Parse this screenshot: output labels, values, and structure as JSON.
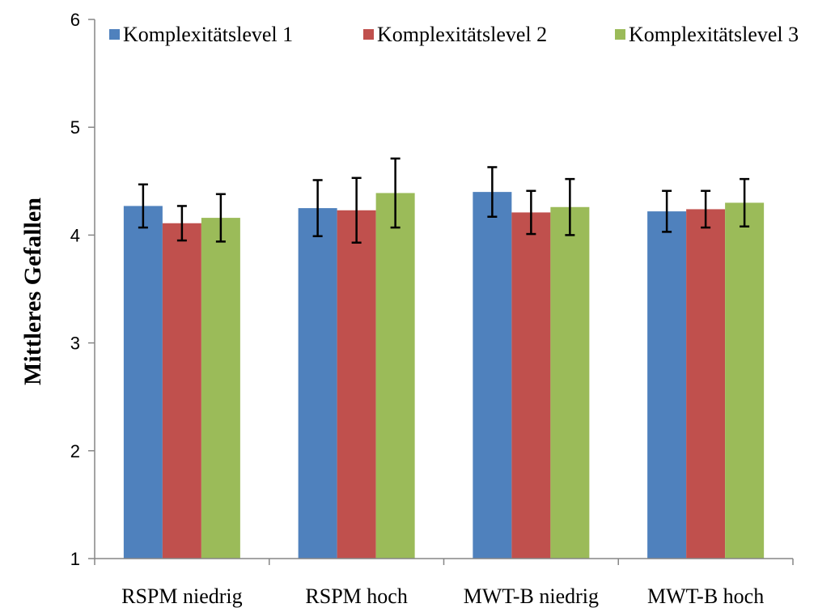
{
  "chart_data": {
    "type": "bar",
    "title": "",
    "xlabel": "",
    "ylabel": "Mittleres  Gefallen",
    "ylim": [
      1,
      6
    ],
    "yticks": [
      1,
      2,
      3,
      4,
      5,
      6
    ],
    "grid": false,
    "legend_position": "top",
    "categories": [
      "RSPM niedrig",
      "RSPM hoch",
      "MWT-B niedrig",
      "MWT-B hoch"
    ],
    "series": [
      {
        "name": "Komplexitätslevel 1",
        "color": "#4f81bd",
        "values": [
          4.27,
          4.25,
          4.4,
          4.22
        ],
        "error": [
          0.2,
          0.26,
          0.23,
          0.19
        ]
      },
      {
        "name": "Komplexitätslevel 2",
        "color": "#c0504d",
        "values": [
          4.11,
          4.23,
          4.21,
          4.24
        ],
        "error": [
          0.16,
          0.3,
          0.2,
          0.17
        ]
      },
      {
        "name": "Komplexitätslevel 3",
        "color": "#9bbb59",
        "values": [
          4.16,
          4.39,
          4.26,
          4.3
        ],
        "error": [
          0.22,
          0.32,
          0.26,
          0.22
        ]
      }
    ]
  }
}
